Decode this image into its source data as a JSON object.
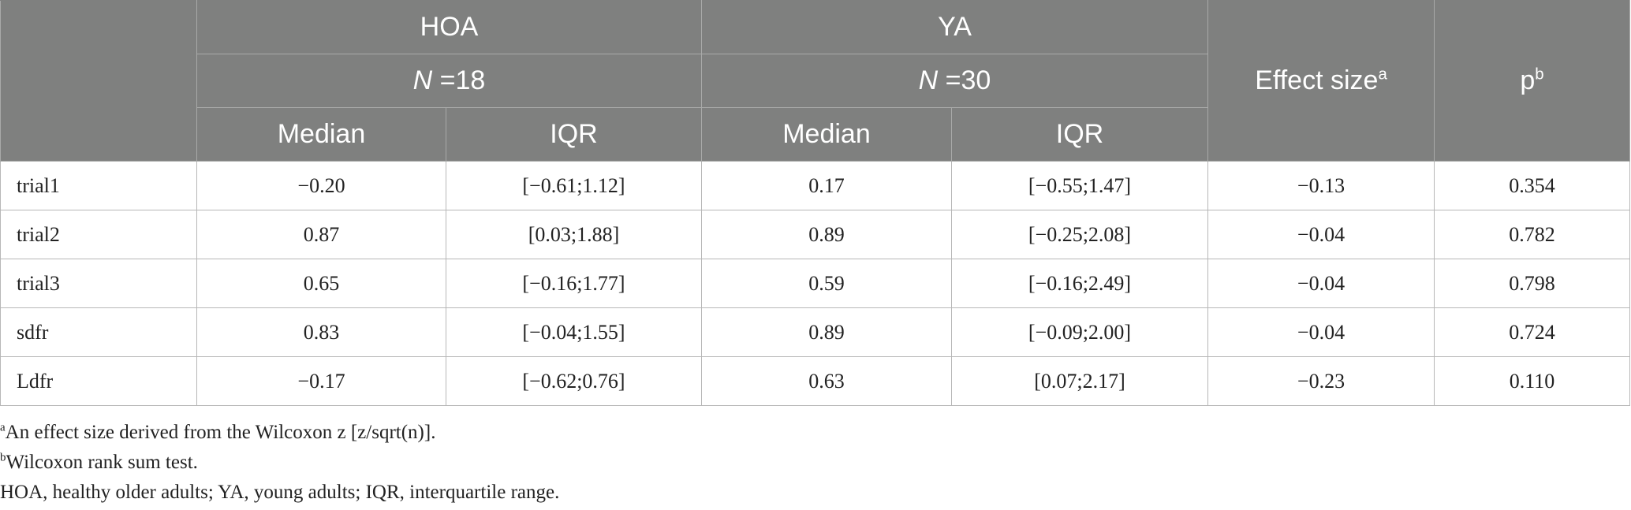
{
  "header": {
    "groups": [
      {
        "label": "HOA",
        "n_label": "N",
        "n_value": "=18"
      },
      {
        "label": "YA",
        "n_label": "N",
        "n_value": "=30"
      }
    ],
    "effect_size": {
      "label": "Effect size",
      "mark": "a"
    },
    "p": {
      "label": "p",
      "mark": "b"
    },
    "sub": [
      "Median",
      "IQR",
      "Median",
      "IQR"
    ]
  },
  "rows": [
    {
      "label": "trial1",
      "hoa_median": "−0.20",
      "hoa_iqr": "[−0.61;1.12]",
      "ya_median": "0.17",
      "ya_iqr": "[−0.55;1.47]",
      "effect": "−0.13",
      "p": "0.354"
    },
    {
      "label": "trial2",
      "hoa_median": "0.87",
      "hoa_iqr": "[0.03;1.88]",
      "ya_median": "0.89",
      "ya_iqr": "[−0.25;2.08]",
      "effect": "−0.04",
      "p": "0.782"
    },
    {
      "label": "trial3",
      "hoa_median": "0.65",
      "hoa_iqr": "[−0.16;1.77]",
      "ya_median": "0.59",
      "ya_iqr": "[−0.16;2.49]",
      "effect": "−0.04",
      "p": "0.798"
    },
    {
      "label": "sdfr",
      "hoa_median": "0.83",
      "hoa_iqr": "[−0.04;1.55]",
      "ya_median": "0.89",
      "ya_iqr": "[−0.09;2.00]",
      "effect": "−0.04",
      "p": "0.724"
    },
    {
      "label": "Ldfr",
      "hoa_median": "−0.17",
      "hoa_iqr": "[−0.62;0.76]",
      "ya_median": "0.63",
      "ya_iqr": "[0.07;2.17]",
      "effect": "−0.23",
      "p": "0.110"
    }
  ],
  "footnotes": [
    {
      "mark": "a",
      "text": "An effect size derived from the Wilcoxon z [z/sqrt(n)]."
    },
    {
      "mark": "b",
      "text": "Wilcoxon rank sum test."
    },
    {
      "mark": "",
      "text": "HOA, healthy older adults; YA, young adults; IQR, interquartile range."
    }
  ]
}
